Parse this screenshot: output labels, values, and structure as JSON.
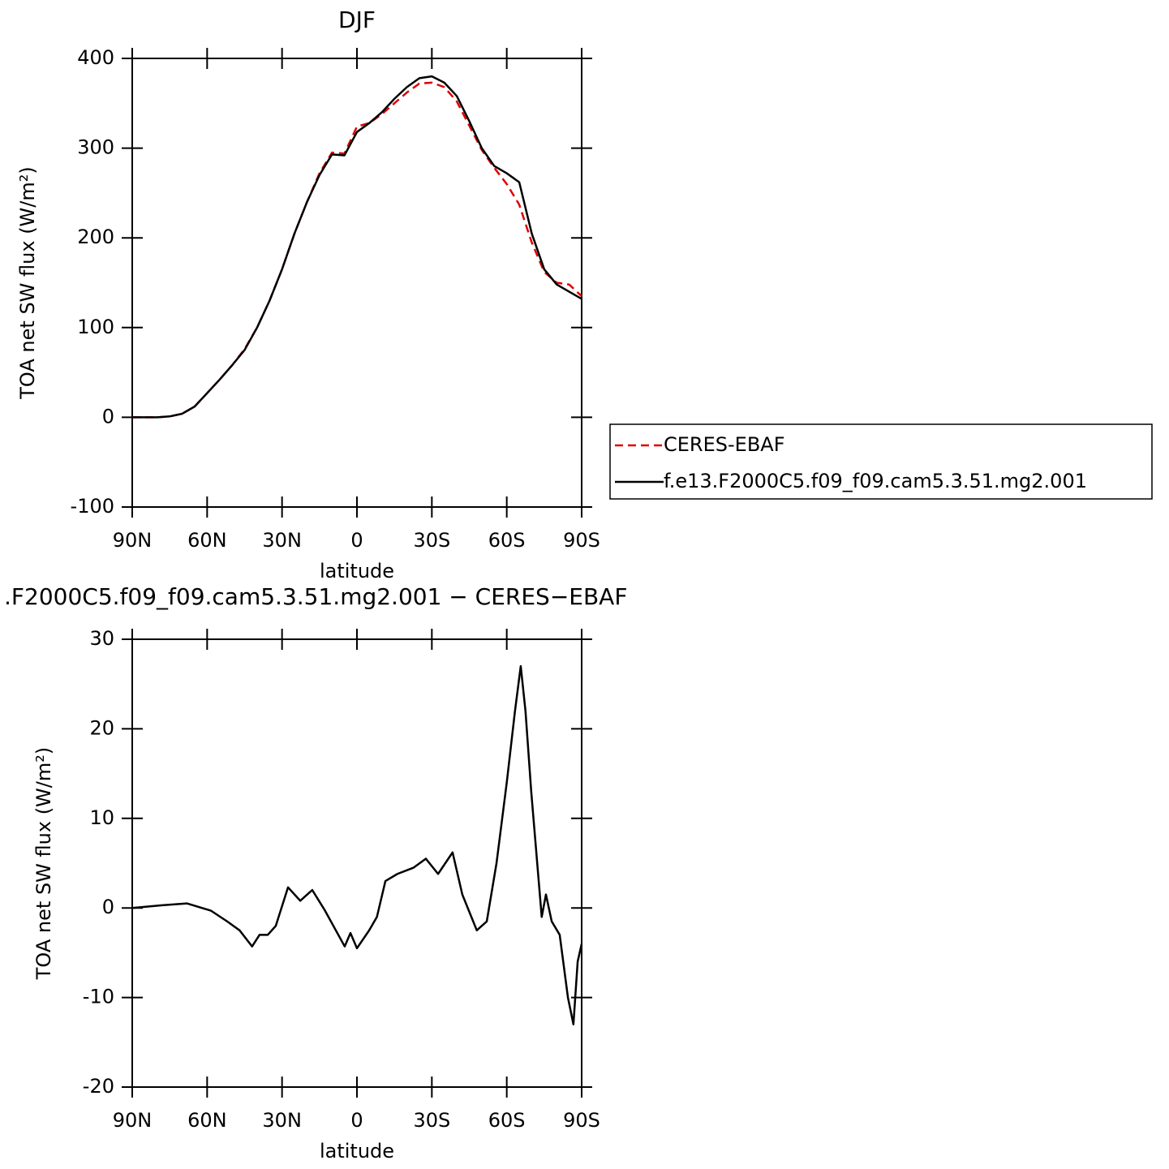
{
  "chart_data": [
    {
      "type": "line",
      "title": "DJF",
      "xlabel": "latitude",
      "ylabel": "TOA net SW flux (W/m²)",
      "x": [
        90,
        85,
        80,
        75,
        70,
        65,
        60,
        55,
        50,
        45,
        40,
        35,
        30,
        25,
        20,
        15,
        10,
        5,
        0,
        -5,
        -10,
        -15,
        -20,
        -25,
        -30,
        -35,
        -40,
        -45,
        -50,
        -55,
        -60,
        -65,
        -70,
        -75,
        -80,
        -85,
        -90
      ],
      "series": [
        {
          "name": "CERES-EBAF",
          "color": "#e00000",
          "dash": true,
          "values": [
            0,
            0,
            0,
            1,
            4,
            12,
            27,
            42,
            58,
            76,
            100,
            130,
            165,
            205,
            240,
            272,
            295,
            294,
            324,
            328,
            338,
            350,
            362,
            372,
            373,
            368,
            352,
            325,
            298,
            278,
            260,
            237,
            195,
            162,
            150,
            148,
            135
          ]
        },
        {
          "name": "f.e13.F2000C5.f09_f09.cam5.3.51.mg2.001",
          "color": "#000000",
          "dash": false,
          "values": [
            0,
            0,
            0,
            1,
            4,
            12,
            27,
            42,
            58,
            75,
            100,
            130,
            165,
            205,
            240,
            270,
            293,
            292,
            318,
            328,
            340,
            355,
            368,
            378,
            380,
            373,
            358,
            330,
            300,
            280,
            272,
            262,
            205,
            165,
            148,
            140,
            132
          ]
        }
      ],
      "xlim": [
        90,
        -90
      ],
      "ylim": [
        -100,
        400
      ],
      "xticks": [
        {
          "value": 90,
          "label": "90N"
        },
        {
          "value": 60,
          "label": "60N"
        },
        {
          "value": 30,
          "label": "30N"
        },
        0,
        {
          "value": -30,
          "label": "30S"
        },
        {
          "value": -60,
          "label": "60S"
        },
        {
          "value": -90,
          "label": "90S"
        }
      ],
      "yticks": [
        -100,
        0,
        100,
        200,
        300,
        400
      ],
      "grid": false,
      "legend": "right"
    },
    {
      "type": "line",
      "title": ".F2000C5.f09_f09.cam5.3.51.mg2.001 − CERES−EBAF",
      "xlabel": "latitude",
      "ylabel": "TOA net SW flux (W/m²)",
      "x": [
        90,
        78,
        68,
        58.5,
        52,
        47,
        42,
        39,
        35.7,
        32.5,
        27.6,
        22.7,
        17.9,
        13,
        4.9,
        2.6,
        0,
        -4.9,
        -8,
        -11.4,
        -16.2,
        -22.7,
        -27.6,
        -32.5,
        -38.3,
        -42.2,
        -48,
        -52,
        -55.9,
        -60,
        -63.3,
        -65.6,
        -67.5,
        -69.8,
        -74,
        -75.7,
        -78,
        -81.2,
        -84.5,
        -86.7,
        -88.4,
        -90
      ],
      "series": [
        {
          "color": "#000000",
          "dash": false,
          "values": [
            0,
            0.3,
            0.5,
            -0.3,
            -1.5,
            -2.5,
            -4.3,
            -3,
            -3,
            -2,
            2.3,
            0.8,
            2,
            -0.2,
            -4.3,
            -2.8,
            -4.5,
            -2.5,
            -1,
            3,
            3.8,
            4.5,
            5.5,
            3.8,
            6.2,
            1.5,
            -2.5,
            -1.5,
            5,
            14,
            22,
            27,
            22,
            13,
            -1,
            1.5,
            -1.5,
            -3,
            -10,
            -13,
            -6,
            -4
          ]
        }
      ],
      "xlim": [
        90,
        -90
      ],
      "ylim": [
        -20,
        30
      ],
      "xticks": [
        {
          "value": 90,
          "label": "90N"
        },
        {
          "value": 60,
          "label": "60N"
        },
        {
          "value": 30,
          "label": "30N"
        },
        0,
        {
          "value": -30,
          "label": "30S"
        },
        {
          "value": -60,
          "label": "60S"
        },
        {
          "value": -90,
          "label": "90S"
        }
      ],
      "yticks": [
        -20,
        -10,
        0,
        10,
        20,
        30
      ],
      "grid": false
    }
  ]
}
